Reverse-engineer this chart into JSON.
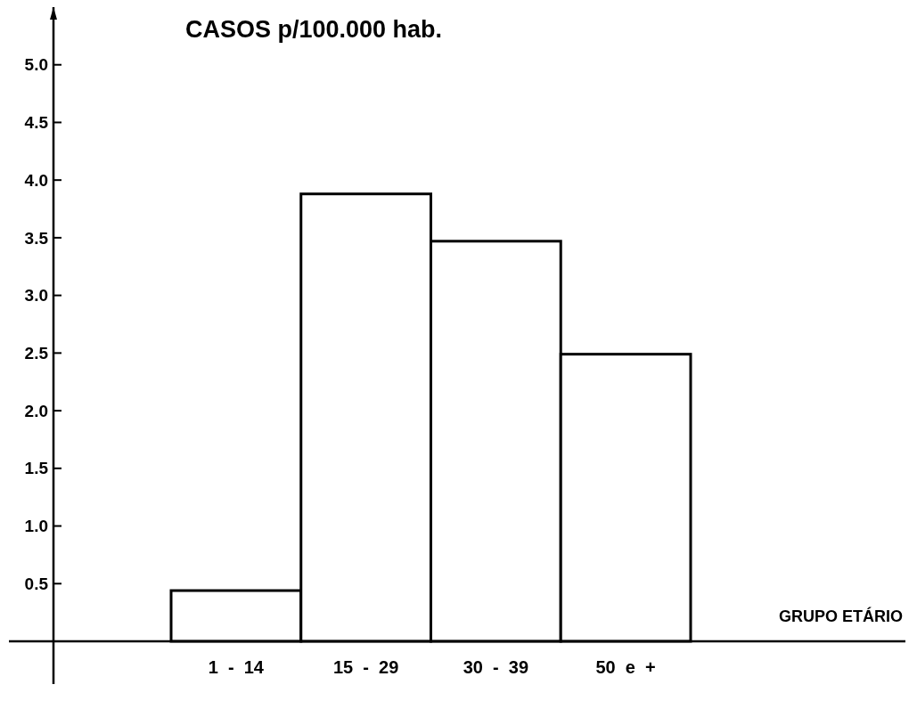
{
  "chart_data": {
    "type": "bar",
    "ylabel": "CASOS p/100.000 hab.",
    "annotations": [
      "GRUPO ETÁRIO"
    ],
    "categories": [
      "1  -  14",
      "15  -  29",
      "30  -  39",
      "50  e  +"
    ],
    "values": [
      0.44,
      3.88,
      3.47,
      2.49
    ],
    "color": "#ffffff",
    "ylim": [
      0,
      5.5
    ],
    "yticks": [
      {
        "value": 0.5,
        "label": "0.5"
      },
      {
        "value": 1,
        "label": "1.0"
      },
      {
        "value": 1.5,
        "label": "1.5"
      },
      {
        "value": 2,
        "label": "2.0"
      },
      {
        "value": 2.5,
        "label": "2.5"
      },
      {
        "value": 3,
        "label": "3.0"
      },
      {
        "value": 3.5,
        "label": "3.5"
      },
      {
        "value": 4,
        "label": "4.0"
      },
      {
        "value": 4.5,
        "label": "4.5"
      },
      {
        "value": 5,
        "label": "5.0"
      }
    ],
    "grid": false
  }
}
